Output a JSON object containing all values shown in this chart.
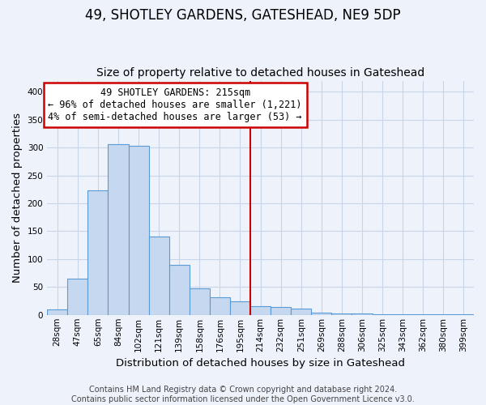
{
  "title": "49, SHOTLEY GARDENS, GATESHEAD, NE9 5DP",
  "subtitle": "Size of property relative to detached houses in Gateshead",
  "xlabel": "Distribution of detached houses by size in Gateshead",
  "ylabel": "Number of detached properties",
  "bar_labels": [
    "28sqm",
    "47sqm",
    "65sqm",
    "84sqm",
    "102sqm",
    "121sqm",
    "139sqm",
    "158sqm",
    "176sqm",
    "195sqm",
    "214sqm",
    "232sqm",
    "251sqm",
    "269sqm",
    "288sqm",
    "306sqm",
    "325sqm",
    "343sqm",
    "362sqm",
    "380sqm",
    "399sqm"
  ],
  "bar_values": [
    10,
    65,
    223,
    306,
    303,
    140,
    90,
    47,
    31,
    24,
    16,
    14,
    12,
    4,
    3,
    2,
    1,
    1,
    1,
    1,
    1
  ],
  "bar_color": "#c5d8ef",
  "bar_edge_color": "#5b9bd5",
  "pct_smaller": 96,
  "count_smaller": 1221,
  "pct_larger": 4,
  "count_larger": 53,
  "vline_color": "#cc0000",
  "annotation_box_color": "#cc0000",
  "ylim": [
    0,
    420
  ],
  "yticks": [
    0,
    50,
    100,
    150,
    200,
    250,
    300,
    350,
    400
  ],
  "footer_line1": "Contains HM Land Registry data © Crown copyright and database right 2024.",
  "footer_line2": "Contains public sector information licensed under the Open Government Licence v3.0.",
  "background_color": "#eef2fb",
  "grid_color": "#c8d4e8",
  "title_fontsize": 12,
  "subtitle_fontsize": 10,
  "axis_label_fontsize": 9.5,
  "tick_fontsize": 7.5,
  "footer_fontsize": 7,
  "annot_fontsize": 8.5
}
